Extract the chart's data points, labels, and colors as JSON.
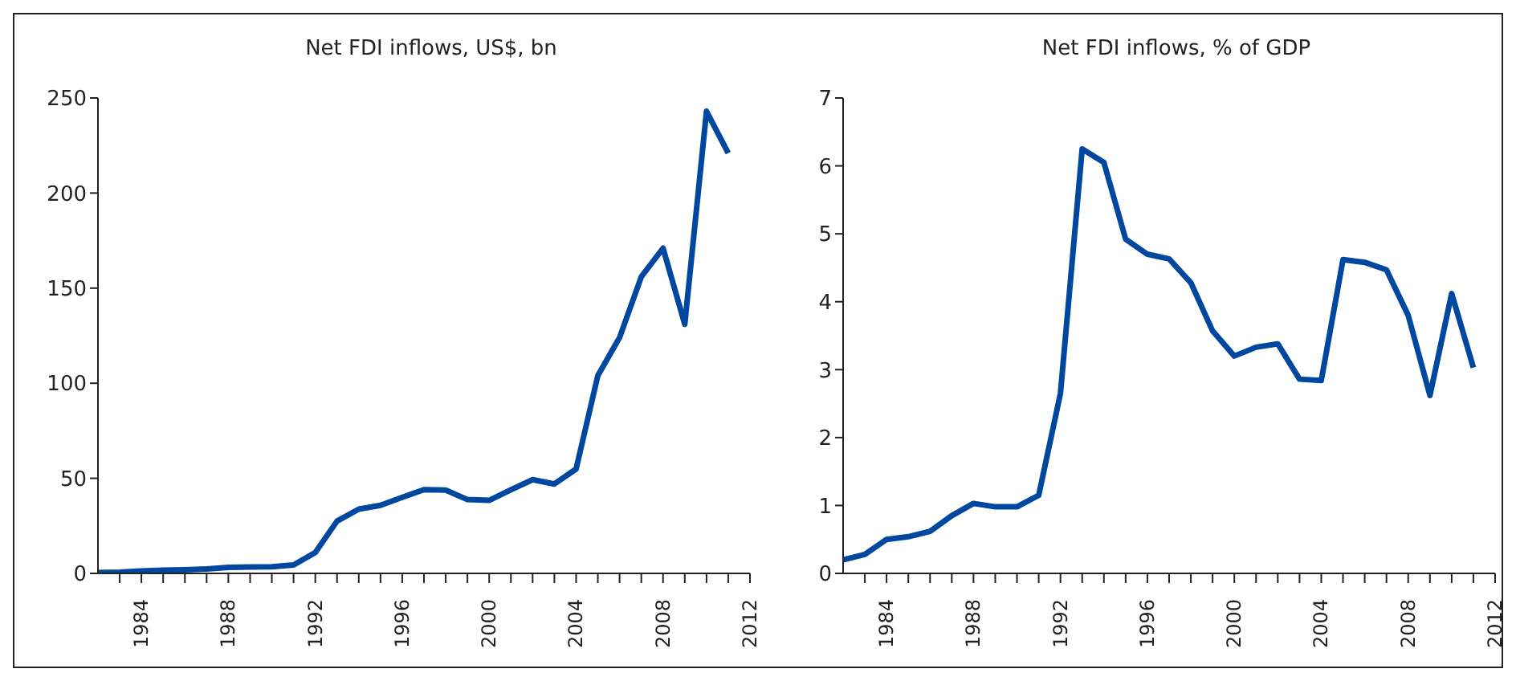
{
  "chart_data": [
    {
      "type": "line",
      "title": "Net FDI inflows, US$, bn",
      "x": [
        1982,
        1983,
        1984,
        1985,
        1986,
        1987,
        1988,
        1989,
        1990,
        1991,
        1992,
        1993,
        1994,
        1995,
        1996,
        1997,
        1998,
        1999,
        2000,
        2001,
        2002,
        2003,
        2004,
        2005,
        2006,
        2007,
        2008,
        2009,
        2010,
        2011
      ],
      "series": [
        {
          "color": "#0047a0",
          "values": [
            0.4,
            0.6,
            1.3,
            1.7,
            1.9,
            2.3,
            3.2,
            3.4,
            3.5,
            4.4,
            11,
            27.5,
            33.8,
            35.8,
            40,
            44,
            43.8,
            38.8,
            38.4,
            44,
            49.3,
            47,
            54.9,
            104,
            124,
            156,
            171,
            131,
            243,
            221
          ]
        }
      ],
      "xlim": [
        1982,
        2012
      ],
      "xticks": [
        {
          "value": 1983,
          "label": null
        },
        1984,
        {
          "value": 1985,
          "label": null
        },
        {
          "value": 1986,
          "label": null
        },
        {
          "value": 1987,
          "label": null
        },
        1988,
        {
          "value": 1989,
          "label": null
        },
        {
          "value": 1990,
          "label": null
        },
        {
          "value": 1991,
          "label": null
        },
        1992,
        {
          "value": 1993,
          "label": null
        },
        {
          "value": 1994,
          "label": null
        },
        {
          "value": 1995,
          "label": null
        },
        1996,
        {
          "value": 1997,
          "label": null
        },
        {
          "value": 1998,
          "label": null
        },
        {
          "value": 1999,
          "label": null
        },
        2000,
        {
          "value": 2001,
          "label": null
        },
        {
          "value": 2002,
          "label": null
        },
        {
          "value": 2003,
          "label": null
        },
        2004,
        {
          "value": 2005,
          "label": null
        },
        {
          "value": 2006,
          "label": null
        },
        {
          "value": 2007,
          "label": null
        },
        2008,
        {
          "value": 2009,
          "label": null
        },
        {
          "value": 2010,
          "label": null
        },
        {
          "value": 2011,
          "label": null
        },
        2012
      ],
      "ylim": [
        0,
        250
      ],
      "yticks": [
        0,
        50,
        100,
        150,
        200,
        250
      ],
      "grid": false,
      "legend": false,
      "marker": "none",
      "line_style": "solid"
    },
    {
      "type": "line",
      "title": "Net FDI inflows, % of GDP",
      "x": [
        1982,
        1983,
        1984,
        1985,
        1986,
        1987,
        1988,
        1989,
        1990,
        1991,
        1992,
        1993,
        1994,
        1995,
        1996,
        1997,
        1998,
        1999,
        2000,
        2001,
        2002,
        2003,
        2004,
        2005,
        2006,
        2007,
        2008,
        2009,
        2010,
        2011
      ],
      "series": [
        {
          "color": "#0047a0",
          "values": [
            0.2,
            0.28,
            0.5,
            0.54,
            0.62,
            0.85,
            1.03,
            0.98,
            0.98,
            1.15,
            2.65,
            6.25,
            6.05,
            4.92,
            4.7,
            4.63,
            4.28,
            3.57,
            3.2,
            3.33,
            3.38,
            2.86,
            2.84,
            4.62,
            4.58,
            4.47,
            3.8,
            2.62,
            4.12,
            3.03
          ]
        }
      ],
      "xlim": [
        1982,
        2012
      ],
      "xticks": [
        {
          "value": 1983,
          "label": null
        },
        1984,
        {
          "value": 1985,
          "label": null
        },
        {
          "value": 1986,
          "label": null
        },
        {
          "value": 1987,
          "label": null
        },
        1988,
        {
          "value": 1989,
          "label": null
        },
        {
          "value": 1990,
          "label": null
        },
        {
          "value": 1991,
          "label": null
        },
        1992,
        {
          "value": 1993,
          "label": null
        },
        {
          "value": 1994,
          "label": null
        },
        {
          "value": 1995,
          "label": null
        },
        1996,
        {
          "value": 1997,
          "label": null
        },
        {
          "value": 1998,
          "label": null
        },
        {
          "value": 1999,
          "label": null
        },
        2000,
        {
          "value": 2001,
          "label": null
        },
        {
          "value": 2002,
          "label": null
        },
        {
          "value": 2003,
          "label": null
        },
        2004,
        {
          "value": 2005,
          "label": null
        },
        {
          "value": 2006,
          "label": null
        },
        {
          "value": 2007,
          "label": null
        },
        2008,
        {
          "value": 2009,
          "label": null
        },
        {
          "value": 2010,
          "label": null
        },
        {
          "value": 2011,
          "label": null
        },
        2012
      ],
      "ylim": [
        0,
        7
      ],
      "yticks": [
        0,
        1,
        2,
        3,
        4,
        5,
        6,
        7
      ],
      "grid": false,
      "legend": false,
      "marker": "none",
      "line_style": "solid"
    }
  ]
}
